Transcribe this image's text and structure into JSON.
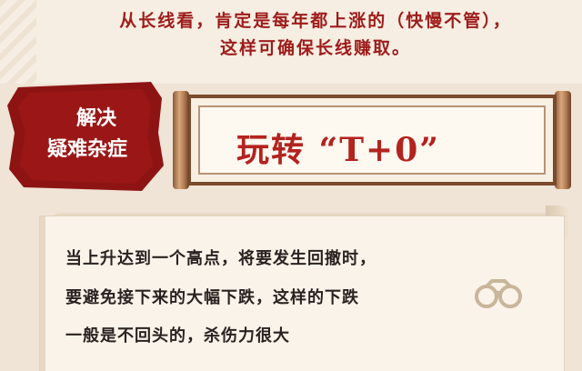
{
  "header": {
    "line1": "从长线看，肯定是每年都上涨的（快慢不管），",
    "line2": "这样可确保长线赚取。"
  },
  "badge": {
    "line1": "解决",
    "line2": "疑难杂症"
  },
  "title": {
    "text": "玩转 “T+0”"
  },
  "body": {
    "lines": [
      "当上升达到一个高点，将要发生回撤时，",
      "要避免接下来的大幅下跌，这样的下跌",
      "一般是不回头的，杀伤力很大"
    ]
  },
  "icons": {
    "body_icon": "binoculars-icon"
  },
  "colors": {
    "accent_red": "#b3231f",
    "header_red": "#9e1c1a",
    "stamp_red": "#8e1414",
    "background": "#efe4d6"
  }
}
